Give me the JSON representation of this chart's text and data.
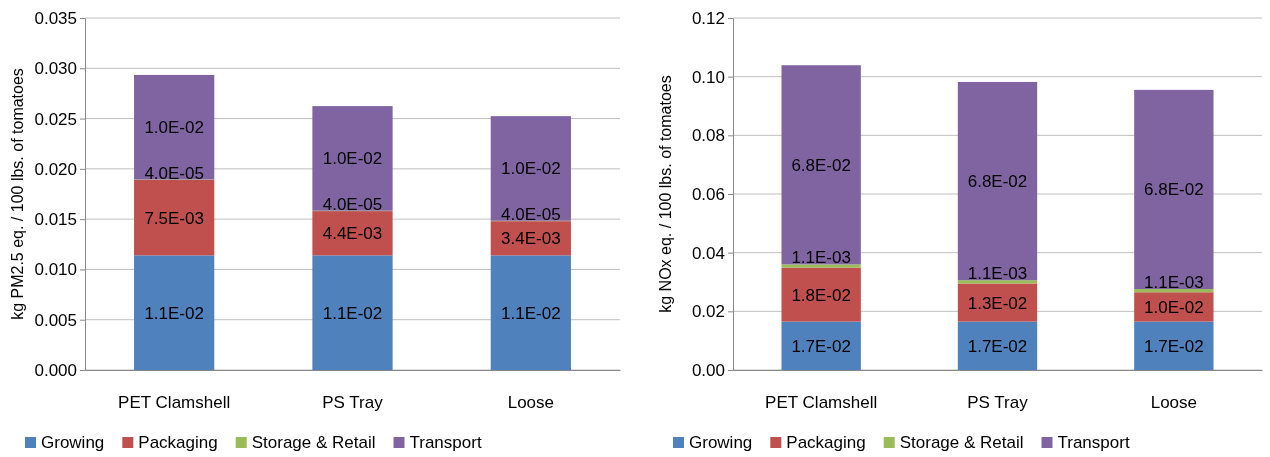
{
  "chart_data": [
    {
      "type": "bar",
      "stacked": true,
      "ylabel": "kg PM2.5 eq. / 100 lbs. of tomatoes",
      "categories": [
        "PET Clamshell",
        "PS Tray",
        "Loose"
      ],
      "ylim": [
        0,
        0.035
      ],
      "yticks": [
        {
          "value": 0,
          "label": "0.000"
        },
        {
          "value": 0.005,
          "label": "0.005"
        },
        {
          "value": 0.01,
          "label": "0.010"
        },
        {
          "value": 0.015,
          "label": "0.015"
        },
        {
          "value": 0.02,
          "label": "0.020"
        },
        {
          "value": 0.025,
          "label": "0.025"
        },
        {
          "value": 0.03,
          "label": "0.030"
        },
        {
          "value": 0.035,
          "label": "0.035"
        }
      ],
      "grid": "y",
      "legend": "bottom",
      "series": [
        {
          "name": "Growing",
          "color": "#4f81bd",
          "values": [
            0.0114,
            0.0114,
            0.0114
          ],
          "value_labels": [
            "1.1E-02",
            "1.1E-02",
            "1.1E-02"
          ]
        },
        {
          "name": "Packaging",
          "color": "#c0504d",
          "values": [
            0.0075,
            0.0044,
            0.0034
          ],
          "value_labels": [
            "7.5E-03",
            "4.4E-03",
            "3.4E-03"
          ]
        },
        {
          "name": "Storage & Retail",
          "color": "#9bbb59",
          "values": [
            4e-05,
            4e-05,
            4e-05
          ],
          "value_labels": [
            "4.0E-05",
            "4.0E-05",
            "4.0E-05"
          ]
        },
        {
          "name": "Transport",
          "color": "#8064a2",
          "values": [
            0.0104,
            0.0104,
            0.0104
          ],
          "value_labels": [
            "1.0E-02",
            "1.0E-02",
            "1.0E-02"
          ]
        }
      ]
    },
    {
      "type": "bar",
      "stacked": true,
      "ylabel": "kg NOx eq. / 100 lbs. of tomatoes",
      "categories": [
        "PET Clamshell",
        "PS Tray",
        "Loose"
      ],
      "ylim": [
        0,
        0.12
      ],
      "yticks": [
        {
          "value": 0,
          "label": "0.00"
        },
        {
          "value": 0.02,
          "label": "0.02"
        },
        {
          "value": 0.04,
          "label": "0.04"
        },
        {
          "value": 0.06,
          "label": "0.06"
        },
        {
          "value": 0.08,
          "label": "0.08"
        },
        {
          "value": 0.1,
          "label": "0.10"
        },
        {
          "value": 0.12,
          "label": "0.12"
        }
      ],
      "grid": "y",
      "legend": "bottom",
      "series": [
        {
          "name": "Growing",
          "color": "#4f81bd",
          "values": [
            0.0165,
            0.0165,
            0.0165
          ],
          "value_labels": [
            "1.7E-02",
            "1.7E-02",
            "1.7E-02"
          ]
        },
        {
          "name": "Packaging",
          "color": "#c0504d",
          "values": [
            0.0184,
            0.013,
            0.01
          ],
          "value_labels": [
            "1.8E-02",
            "1.3E-02",
            "1.0E-02"
          ]
        },
        {
          "name": "Storage & Retail",
          "color": "#9bbb59",
          "values": [
            0.0011,
            0.0011,
            0.0011
          ],
          "value_labels": [
            "1.1E-03",
            "1.1E-03",
            "1.1E-03"
          ]
        },
        {
          "name": "Transport",
          "color": "#8064a2",
          "values": [
            0.0679,
            0.0676,
            0.0679
          ],
          "value_labels": [
            "6.8E-02",
            "6.8E-02",
            "6.8E-02"
          ]
        }
      ]
    }
  ]
}
